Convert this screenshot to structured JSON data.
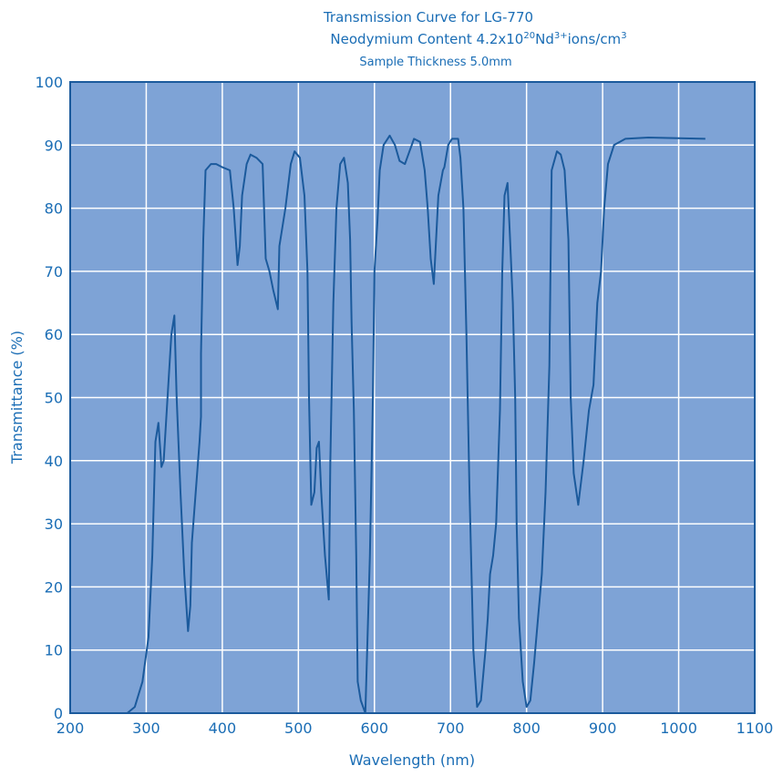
{
  "chart_data": {
    "type": "line",
    "title": "Transmission Curve for LG-770",
    "subtitle": [
      "Neodymium Content 4.2x10",
      "20",
      "Nd",
      "3+",
      "ions/cm",
      "3"
    ],
    "note": "Sample Thickness 5.0mm",
    "x_label": "Wavelength (nm)",
    "y_label": "Transmittance (%)",
    "xlim": [
      200,
      1100
    ],
    "ylim": [
      0,
      100
    ],
    "xticks": [
      200,
      300,
      400,
      500,
      600,
      700,
      800,
      900,
      1000,
      1100
    ],
    "yticks": [
      0,
      10,
      20,
      30,
      40,
      50,
      60,
      70,
      80,
      90,
      100
    ],
    "grid": true,
    "background": "#7ea3d6",
    "series": [
      {
        "color": "#1b5a9c",
        "x": [
          275,
          285,
          295,
          303,
          308,
          312,
          316,
          320,
          323,
          328,
          333,
          337,
          340,
          345,
          350,
          355,
          358,
          360,
          365,
          370,
          372,
          372,
          375,
          378,
          385,
          392,
          400,
          410,
          415,
          420,
          423,
          426,
          432,
          437,
          445,
          453,
          457,
          462,
          467,
          473,
          475,
          483,
          490,
          495,
          502,
          508,
          512,
          514,
          517,
          521,
          524,
          527,
          530,
          535,
          540,
          542,
          546,
          550,
          555,
          560,
          565,
          568,
          570,
          573,
          576,
          578,
          582,
          588,
          590,
          594,
          598,
          600,
          604,
          607,
          612,
          620,
          627,
          633,
          640,
          646,
          652,
          660,
          666,
          670,
          674,
          678,
          681,
          684,
          690,
          692,
          697,
          702,
          710,
          713,
          717,
          721,
          725,
          730,
          735,
          740,
          746,
          749,
          752,
          756,
          760,
          765,
          768,
          771,
          775,
          778,
          782,
          785,
          787,
          790,
          795,
          800,
          805,
          810,
          815,
          820,
          825,
          830,
          833,
          840,
          845,
          850,
          855,
          858,
          862,
          868,
          875,
          882,
          888,
          893,
          898,
          902,
          907,
          915,
          930,
          960,
          1000,
          1035
        ],
        "values": [
          0,
          1,
          5,
          12,
          25,
          43,
          46,
          39,
          40,
          50,
          60,
          63,
          50,
          35,
          22,
          13,
          17,
          27,
          35,
          43,
          47,
          57,
          75,
          86,
          87,
          87,
          86.5,
          86,
          80,
          71,
          74,
          82,
          87,
          88.5,
          88,
          87,
          72,
          70,
          67,
          64,
          74,
          80,
          87,
          89,
          88,
          82,
          70,
          50,
          33,
          35,
          42,
          43,
          35,
          25,
          18,
          40,
          65,
          80,
          87,
          88,
          84,
          75,
          62,
          48,
          25,
          5,
          2,
          0,
          8,
          25,
          50,
          70,
          78,
          86,
          90,
          91.5,
          90,
          87.5,
          87,
          89,
          91,
          90.5,
          86,
          80,
          72,
          68,
          75,
          82,
          86,
          86.5,
          90,
          91,
          91,
          88,
          80,
          60,
          35,
          10,
          1,
          2,
          10,
          15,
          22,
          25,
          30,
          48,
          70,
          82,
          84,
          76,
          65,
          50,
          30,
          15,
          5,
          1,
          2,
          8,
          15,
          22,
          35,
          55,
          86,
          89,
          88.5,
          86,
          75,
          50,
          38,
          33,
          40,
          48,
          52,
          65,
          70,
          80,
          87,
          90,
          91,
          91.2,
          91.1,
          91
        ]
      }
    ]
  }
}
